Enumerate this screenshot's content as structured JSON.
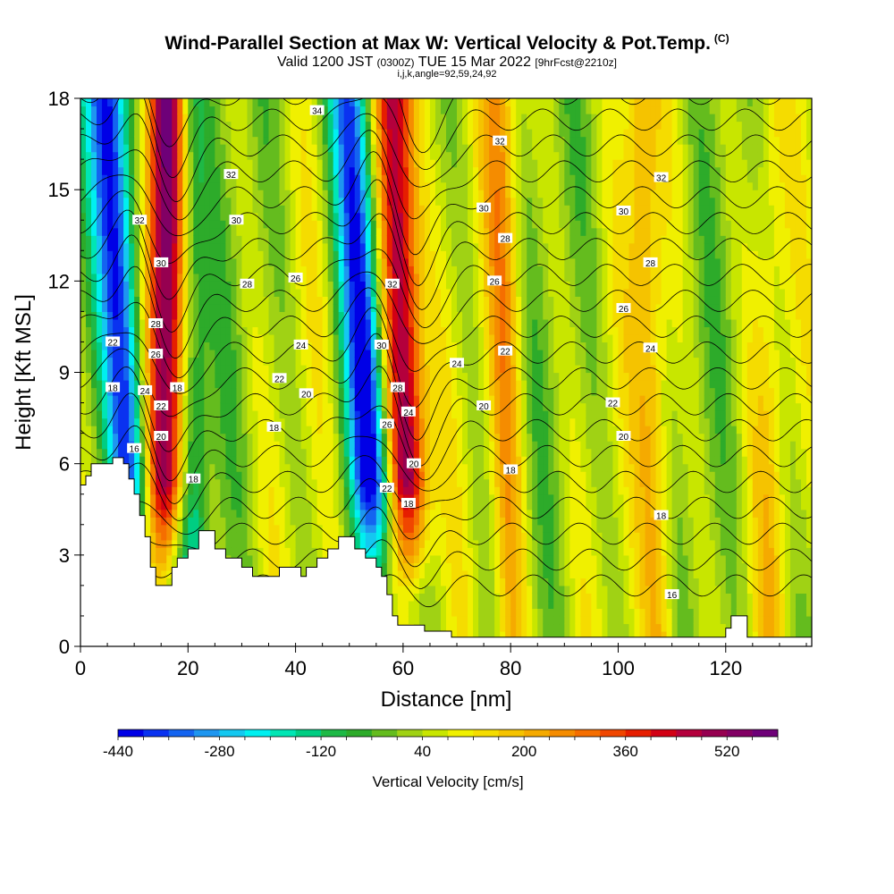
{
  "title": {
    "main": "Wind-Parallel Section at Max W: Vertical Velocity & Pot.Temp.",
    "copyright": "(C)",
    "valid_prefix": "Valid 1200 JST",
    "valid_z": "(0300Z)",
    "valid_date": "TUE 15 Mar 2022",
    "forecast": "[9hrFcst@2210z]",
    "sub": "i,j,k,angle=92,59,24,92"
  },
  "chart_data": {
    "type": "heatmap",
    "xlabel": "Distance [nm]",
    "ylabel": "Height [Kft MSL]",
    "xlim": [
      0,
      136
    ],
    "ylim": [
      0,
      18
    ],
    "x_ticks": [
      0,
      20,
      40,
      60,
      80,
      100,
      120
    ],
    "y_ticks": [
      0,
      3,
      6,
      9,
      12,
      15,
      18
    ],
    "colorbar": {
      "label": "Vertical Velocity [cm/s]",
      "min": -440,
      "max": 600,
      "step": 40,
      "tick_values": [
        -440,
        -280,
        -120,
        40,
        200,
        360,
        520
      ],
      "colors": [
        "#0000e6",
        "#0a32f0",
        "#1464f0",
        "#1e96f0",
        "#14c8f0",
        "#00f0f0",
        "#00e6b4",
        "#00cd82",
        "#1eb946",
        "#2dab2a",
        "#64bc1e",
        "#a0d214",
        "#c8e600",
        "#f0f000",
        "#f5dc00",
        "#f5c300",
        "#f5aa00",
        "#f58c00",
        "#f56e00",
        "#f04600",
        "#e61e00",
        "#d20014",
        "#b4003c",
        "#960050",
        "#820064",
        "#6e0078"
      ]
    },
    "updrafts": [
      {
        "x_top": 16,
        "x_bottom": 16,
        "w": 560
      },
      {
        "x_top": 58,
        "x_bottom": 62,
        "w": 560
      },
      {
        "x_top": 78,
        "x_bottom": 80,
        "w": 220
      },
      {
        "x_top": 104,
        "x_bottom": 108,
        "w": 200
      },
      {
        "x_top": 128,
        "x_bottom": 128,
        "w": 120
      }
    ],
    "downdrafts": [
      {
        "x_top": 5,
        "x_bottom": 11,
        "w": -440
      },
      {
        "x_top": 50,
        "x_bottom": 56,
        "w": -440
      },
      {
        "x_top": 20,
        "x_bottom": 21,
        "w": -160
      }
    ],
    "terrain": [
      [
        0,
        5.3
      ],
      [
        1,
        5.3
      ],
      [
        1,
        5.6
      ],
      [
        2,
        5.6
      ],
      [
        2,
        6.0
      ],
      [
        6,
        6.0
      ],
      [
        6,
        6.2
      ],
      [
        8,
        6.2
      ],
      [
        8,
        6.0
      ],
      [
        9,
        6.0
      ],
      [
        9,
        5.5
      ],
      [
        10,
        5.5
      ],
      [
        10,
        5.0
      ],
      [
        11,
        5.0
      ],
      [
        11,
        4.3
      ],
      [
        12,
        4.3
      ],
      [
        12,
        3.6
      ],
      [
        13,
        3.6
      ],
      [
        13,
        2.6
      ],
      [
        14,
        2.6
      ],
      [
        14,
        2.0
      ],
      [
        17,
        2.0
      ],
      [
        17,
        2.6
      ],
      [
        18,
        2.6
      ],
      [
        18,
        2.9
      ],
      [
        20,
        2.9
      ],
      [
        20,
        3.2
      ],
      [
        22,
        3.2
      ],
      [
        22,
        3.8
      ],
      [
        25,
        3.8
      ],
      [
        25,
        3.2
      ],
      [
        27,
        3.2
      ],
      [
        27,
        2.9
      ],
      [
        30,
        2.9
      ],
      [
        30,
        2.6
      ],
      [
        32,
        2.6
      ],
      [
        32,
        2.3
      ],
      [
        37,
        2.3
      ],
      [
        37,
        2.6
      ],
      [
        41,
        2.6
      ],
      [
        41,
        2.3
      ],
      [
        42,
        2.3
      ],
      [
        42,
        2.6
      ],
      [
        44,
        2.6
      ],
      [
        44,
        2.9
      ],
      [
        46,
        2.9
      ],
      [
        46,
        3.2
      ],
      [
        48,
        3.2
      ],
      [
        48,
        3.6
      ],
      [
        51,
        3.6
      ],
      [
        51,
        3.2
      ],
      [
        53,
        3.2
      ],
      [
        53,
        2.9
      ],
      [
        55,
        2.9
      ],
      [
        55,
        2.6
      ],
      [
        56,
        2.6
      ],
      [
        56,
        2.3
      ],
      [
        57,
        2.3
      ],
      [
        57,
        1.7
      ],
      [
        58,
        1.7
      ],
      [
        58,
        1.0
      ],
      [
        59,
        1.0
      ],
      [
        59,
        0.7
      ],
      [
        64,
        0.7
      ],
      [
        64,
        0.5
      ],
      [
        69,
        0.5
      ],
      [
        69,
        0.3
      ],
      [
        120,
        0.3
      ],
      [
        120,
        0.6
      ],
      [
        121,
        0.6
      ],
      [
        121,
        1.0
      ],
      [
        124,
        1.0
      ],
      [
        124,
        0.3
      ],
      [
        136,
        0.3
      ],
      [
        136,
        0
      ],
      [
        0,
        0
      ]
    ],
    "theta_contours": [
      16,
      18,
      20,
      22,
      24,
      26,
      28,
      30,
      32,
      34
    ],
    "theta_labels": [
      {
        "text": "34",
        "x": 44,
        "y": 17.6
      },
      {
        "text": "32",
        "x": 28,
        "y": 15.5
      },
      {
        "text": "32",
        "x": 78,
        "y": 16.6
      },
      {
        "text": "32",
        "x": 108,
        "y": 15.4
      },
      {
        "text": "32",
        "x": 11,
        "y": 14.0
      },
      {
        "text": "32",
        "x": 58,
        "y": 11.9
      },
      {
        "text": "30",
        "x": 29,
        "y": 14.0
      },
      {
        "text": "30",
        "x": 75,
        "y": 14.4
      },
      {
        "text": "30",
        "x": 101,
        "y": 14.3
      },
      {
        "text": "30",
        "x": 15,
        "y": 12.6
      },
      {
        "text": "30",
        "x": 56,
        "y": 9.9
      },
      {
        "text": "28",
        "x": 31,
        "y": 11.9
      },
      {
        "text": "28",
        "x": 79,
        "y": 13.4
      },
      {
        "text": "28",
        "x": 106,
        "y": 12.6
      },
      {
        "text": "28",
        "x": 14,
        "y": 10.6
      },
      {
        "text": "28",
        "x": 59,
        "y": 8.5
      },
      {
        "text": "26",
        "x": 40,
        "y": 12.1
      },
      {
        "text": "26",
        "x": 77,
        "y": 12.0
      },
      {
        "text": "26",
        "x": 101,
        "y": 11.1
      },
      {
        "text": "26",
        "x": 14,
        "y": 9.6
      },
      {
        "text": "26",
        "x": 57,
        "y": 7.3
      },
      {
        "text": "24",
        "x": 41,
        "y": 9.9
      },
      {
        "text": "24",
        "x": 70,
        "y": 9.3
      },
      {
        "text": "24",
        "x": 106,
        "y": 9.8
      },
      {
        "text": "24",
        "x": 12,
        "y": 8.4
      },
      {
        "text": "24",
        "x": 61,
        "y": 7.7
      },
      {
        "text": "22",
        "x": 6,
        "y": 10.0
      },
      {
        "text": "22",
        "x": 37,
        "y": 8.8
      },
      {
        "text": "22",
        "x": 79,
        "y": 9.7
      },
      {
        "text": "22",
        "x": 99,
        "y": 8.0
      },
      {
        "text": "22",
        "x": 15,
        "y": 7.9
      },
      {
        "text": "22",
        "x": 57,
        "y": 5.2
      },
      {
        "text": "20",
        "x": 42,
        "y": 8.3
      },
      {
        "text": "20",
        "x": 75,
        "y": 7.9
      },
      {
        "text": "20",
        "x": 101,
        "y": 6.9
      },
      {
        "text": "20",
        "x": 15,
        "y": 6.9
      },
      {
        "text": "20",
        "x": 62,
        "y": 6.0
      },
      {
        "text": "18",
        "x": 6,
        "y": 8.5
      },
      {
        "text": "18",
        "x": 18,
        "y": 8.5
      },
      {
        "text": "18",
        "x": 36,
        "y": 7.2
      },
      {
        "text": "18",
        "x": 80,
        "y": 5.8
      },
      {
        "text": "18",
        "x": 61,
        "y": 4.7
      },
      {
        "text": "18",
        "x": 108,
        "y": 4.3
      },
      {
        "text": "18",
        "x": 21,
        "y": 5.5
      },
      {
        "text": "16",
        "x": 10,
        "y": 6.5
      },
      {
        "text": "16",
        "x": 110,
        "y": 1.7
      }
    ]
  }
}
